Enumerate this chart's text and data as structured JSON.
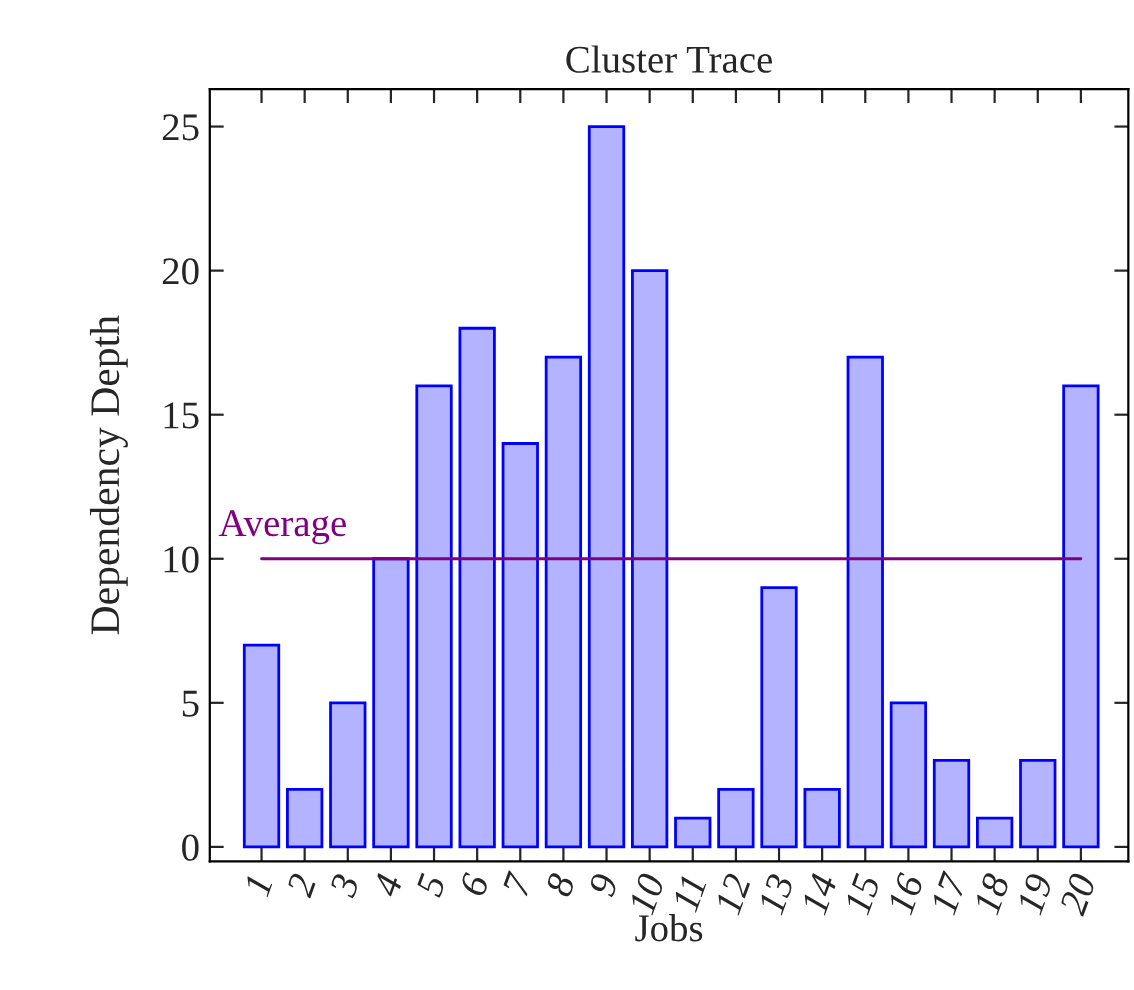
{
  "chart_data": {
    "type": "bar",
    "title": "Cluster Trace",
    "xlabel": "Jobs",
    "ylabel": "Dependency Depth",
    "x": [
      1,
      2,
      3,
      4,
      5,
      6,
      7,
      8,
      9,
      10,
      11,
      12,
      13,
      14,
      15,
      16,
      17,
      18,
      19,
      20
    ],
    "values": [
      7,
      2,
      5,
      10,
      16,
      18,
      14,
      17,
      25,
      20,
      1,
      2,
      9,
      2,
      17,
      5,
      3,
      1,
      3,
      16
    ],
    "color": "#b3b3ff",
    "xlim": [
      -0.2,
      21.1
    ],
    "xticks": [
      1,
      2,
      3,
      4,
      5,
      6,
      7,
      8,
      9,
      10,
      11,
      12,
      13,
      14,
      15,
      16,
      17,
      18,
      19,
      20
    ],
    "ylim": [
      -0.5,
      26.3
    ],
    "yticks": [
      0,
      5,
      10,
      15,
      20,
      25
    ],
    "ref_lines": [
      {
        "axis": "y",
        "value": 10,
        "label": "Average",
        "color": "#800080"
      }
    ],
    "grid": false,
    "legend": false
  }
}
